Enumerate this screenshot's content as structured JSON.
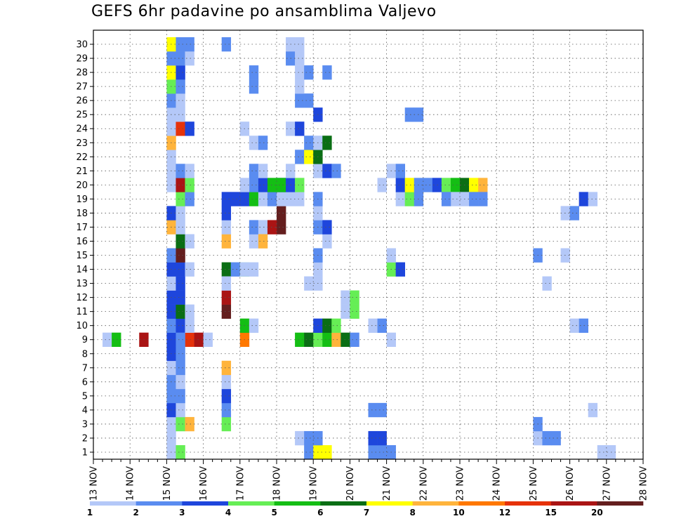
{
  "chart_data": {
    "type": "heatmap",
    "title": "GEFS 6hr padavine po ansamblima Valjevo",
    "y_categories": [
      "1",
      "2",
      "3",
      "4",
      "5",
      "6",
      "7",
      "8",
      "9",
      "10",
      "11",
      "12",
      "13",
      "14",
      "15",
      "16",
      "17",
      "18",
      "19",
      "20",
      "21",
      "22",
      "23",
      "24",
      "25",
      "26",
      "27",
      "28",
      "29",
      "30"
    ],
    "x_ticks": [
      "13 NOV",
      "14 NOV",
      "15 NOV",
      "16 NOV",
      "17 NOV",
      "18 NOV",
      "19 NOV",
      "20 NOV",
      "21 NOV",
      "22 NOV",
      "23 NOV",
      "24 NOV",
      "25 NOV",
      "26 NOV",
      "27 NOV",
      "28 NOV"
    ],
    "x_unit": "6h steps starting 13 NOV 00",
    "legend": {
      "breaks": [
        "1",
        "2",
        "3",
        "4",
        "5",
        "6",
        "7",
        "8",
        "10",
        "12",
        "15",
        "20"
      ],
      "colors": [
        "#b4c8f8",
        "#5a8cf0",
        "#1e46dc",
        "#66ee55",
        "#14be14",
        "#0a6e14",
        "#ffff00",
        "#ffb43c",
        "#ff7800",
        "#e6320a",
        "#aa1414",
        "#641e1e"
      ]
    },
    "level_color_index": {
      "note": "cells value = index into legend.colors (0..11)"
    },
    "cells": [
      [
        8,
        1,
        0
      ],
      [
        8,
        2,
        4
      ],
      [
        8,
        5,
        10
      ],
      [
        8,
        9,
        2
      ],
      [
        8,
        10,
        9
      ],
      [
        8,
        11,
        10
      ],
      [
        8,
        12,
        0
      ],
      [
        8,
        13,
        -1
      ],
      [
        0,
        8,
        0
      ],
      [
        1,
        8,
        0
      ],
      [
        2,
        8,
        0
      ],
      [
        3,
        8,
        2
      ],
      [
        4,
        8,
        1
      ],
      [
        5,
        8,
        1
      ],
      [
        6,
        8,
        0
      ],
      [
        7,
        8,
        2
      ],
      [
        8,
        8,
        2
      ],
      [
        9,
        8,
        1
      ],
      [
        10,
        8,
        2
      ],
      [
        11,
        8,
        2
      ],
      [
        12,
        8,
        0
      ],
      [
        13,
        8,
        2
      ],
      [
        14,
        8,
        1
      ],
      [
        16,
        8,
        7
      ],
      [
        17,
        8,
        2
      ],
      [
        19,
        8,
        0
      ],
      [
        20,
        8,
        0
      ],
      [
        21,
        8,
        0
      ],
      [
        22,
        8,
        7
      ],
      [
        23,
        8,
        0
      ],
      [
        24,
        8,
        0
      ],
      [
        25,
        8,
        1
      ],
      [
        26,
        8,
        3
      ],
      [
        27,
        8,
        6
      ],
      [
        28,
        8,
        1
      ],
      [
        29,
        8,
        6
      ],
      [
        2,
        9,
        3
      ],
      [
        2,
        10,
        7
      ],
      [
        9,
        9,
        2
      ],
      [
        10,
        9,
        5
      ],
      [
        11,
        9,
        2
      ],
      [
        12,
        9,
        2
      ],
      [
        13,
        9,
        2
      ],
      [
        14,
        9,
        11
      ],
      [
        15,
        9,
        5
      ],
      [
        16,
        9,
        0
      ],
      [
        17,
        9,
        0
      ],
      [
        18,
        9,
        3
      ],
      [
        19,
        9,
        10
      ],
      [
        20,
        9,
        1
      ],
      [
        23,
        9,
        9
      ],
      [
        24,
        9,
        0
      ],
      [
        25,
        9,
        0
      ],
      [
        26,
        9,
        1
      ],
      [
        27,
        9,
        2
      ],
      [
        28,
        9,
        1
      ],
      [
        29,
        9,
        1
      ],
      [
        0,
        9,
        3
      ],
      [
        3,
        9,
        0
      ],
      [
        4,
        9,
        1
      ],
      [
        5,
        9,
        0
      ],
      [
        6,
        9,
        1
      ],
      [
        7,
        9,
        1
      ],
      [
        8,
        9,
        1
      ],
      [
        9,
        10,
        0
      ],
      [
        10,
        10,
        0
      ],
      [
        13,
        10,
        0
      ],
      [
        15,
        10,
        0
      ],
      [
        18,
        10,
        1
      ],
      [
        19,
        10,
        3
      ],
      [
        20,
        10,
        0
      ],
      [
        23,
        10,
        2
      ],
      [
        28,
        10,
        0
      ],
      [
        29,
        10,
        1
      ],
      [
        15,
        17,
        0
      ],
      [
        16,
        17,
        1
      ],
      [
        16,
        18,
        0
      ],
      [
        16,
        20,
        11
      ],
      [
        17,
        20,
        11
      ],
      [
        15,
        18,
        7
      ],
      [
        16,
        19,
        10
      ],
      [
        13,
        14,
        5
      ],
      [
        13,
        15,
        1
      ],
      [
        13,
        16,
        3
      ],
      [
        2,
        14,
        3
      ],
      [
        3,
        14,
        1
      ],
      [
        4,
        14,
        2
      ],
      [
        5,
        14,
        0
      ],
      [
        6,
        14,
        7
      ],
      [
        10,
        14,
        11
      ],
      [
        11,
        14,
        10
      ],
      [
        12,
        14,
        0
      ],
      [
        15,
        14,
        7
      ],
      [
        16,
        14,
        0
      ],
      [
        17,
        14,
        2
      ],
      [
        18,
        14,
        2
      ],
      [
        18,
        15,
        2
      ],
      [
        18,
        16,
        2
      ],
      [
        18,
        17,
        4
      ],
      [
        18,
        18,
        0
      ],
      [
        18,
        19,
        1
      ],
      [
        18,
        20,
        0
      ],
      [
        19,
        17,
        1
      ],
      [
        19,
        18,
        2
      ],
      [
        19,
        19,
        4
      ],
      [
        19,
        20,
        2
      ],
      [
        20,
        17,
        1
      ],
      [
        20,
        18,
        0
      ],
      [
        22,
        17,
        0
      ],
      [
        22,
        18,
        1
      ],
      [
        26,
        17,
        1
      ],
      [
        27,
        17,
        1
      ],
      [
        29,
        14,
        1
      ],
      [
        8,
        16,
        8
      ],
      [
        9,
        16,
        4
      ],
      [
        9,
        17,
        0
      ],
      [
        13,
        16,
        0
      ],
      [
        13,
        17,
        0
      ],
      [
        19,
        16,
        0
      ],
      [
        23,
        16,
        0
      ],
      [
        0,
        23,
        1
      ],
      [
        0,
        24,
        6
      ],
      [
        0,
        25,
        6
      ],
      [
        1,
        22,
        0
      ],
      [
        1,
        23,
        1
      ],
      [
        1,
        24,
        1
      ],
      [
        8,
        22,
        4
      ],
      [
        8,
        23,
        5
      ],
      [
        8,
        24,
        3
      ],
      [
        8,
        25,
        4
      ],
      [
        8,
        26,
        7
      ],
      [
        8,
        27,
        5
      ],
      [
        8,
        28,
        1
      ],
      [
        9,
        24,
        2
      ],
      [
        9,
        25,
        5
      ],
      [
        9,
        26,
        3
      ],
      [
        8,
        32,
        0
      ],
      [
        10,
        27,
        0
      ],
      [
        10,
        28,
        3
      ],
      [
        11,
        27,
        0
      ],
      [
        11,
        28,
        3
      ],
      [
        12,
        23,
        0
      ],
      [
        12,
        24,
        0
      ],
      [
        13,
        24,
        0
      ],
      [
        14,
        24,
        1
      ],
      [
        15,
        25,
        0
      ],
      [
        16,
        24,
        1
      ],
      [
        16,
        25,
        2
      ],
      [
        17,
        24,
        0
      ],
      [
        18,
        21,
        0
      ],
      [
        18,
        22,
        0
      ],
      [
        18,
        24,
        1
      ],
      [
        19,
        20,
        4
      ],
      [
        19,
        21,
        2
      ],
      [
        19,
        22,
        3
      ],
      [
        20,
        21,
        0
      ],
      [
        20,
        24,
        0
      ],
      [
        20,
        25,
        2
      ],
      [
        20,
        26,
        1
      ],
      [
        21,
        22,
        1
      ],
      [
        21,
        23,
        6
      ],
      [
        21,
        24,
        5
      ],
      [
        22,
        23,
        1
      ],
      [
        22,
        24,
        0
      ],
      [
        22,
        25,
        5
      ],
      [
        23,
        21,
        0
      ],
      [
        23,
        22,
        2
      ],
      [
        24,
        24,
        2
      ],
      [
        25,
        22,
        1
      ],
      [
        25,
        23,
        1
      ],
      [
        26,
        22,
        0
      ],
      [
        27,
        22,
        0
      ],
      [
        27,
        23,
        1
      ],
      [
        27,
        25,
        1
      ],
      [
        28,
        21,
        1
      ],
      [
        28,
        22,
        0
      ],
      [
        29,
        21,
        0
      ],
      [
        29,
        22,
        0
      ],
      [
        0,
        30,
        1
      ],
      [
        0,
        31,
        1
      ],
      [
        1,
        30,
        2
      ],
      [
        1,
        31,
        2
      ],
      [
        3,
        30,
        1
      ],
      [
        3,
        31,
        1
      ],
      [
        9,
        30,
        0
      ],
      [
        9,
        31,
        1
      ],
      [
        0,
        32,
        1
      ],
      [
        13,
        32,
        3
      ],
      [
        13,
        33,
        2
      ],
      [
        14,
        32,
        0
      ],
      [
        18,
        33,
        0
      ],
      [
        18,
        34,
        3
      ],
      [
        18,
        35,
        1
      ],
      [
        19,
        31,
        0
      ],
      [
        19,
        33,
        2
      ],
      [
        19,
        34,
        6
      ],
      [
        19,
        35,
        1
      ],
      [
        20,
        32,
        0
      ],
      [
        20,
        33,
        1
      ],
      [
        19,
        36,
        1
      ],
      [
        19,
        37,
        2
      ],
      [
        19,
        38,
        3
      ],
      [
        19,
        39,
        4
      ],
      [
        19,
        40,
        5
      ],
      [
        19,
        41,
        6
      ],
      [
        19,
        42,
        7
      ],
      [
        18,
        39,
        0
      ],
      [
        18,
        40,
        0
      ],
      [
        18,
        41,
        1
      ],
      [
        18,
        42,
        1
      ],
      [
        18,
        38,
        1
      ],
      [
        24,
        34,
        1
      ],
      [
        24,
        35,
        1
      ],
      [
        1,
        48,
        0
      ],
      [
        1,
        49,
        1
      ],
      [
        1,
        50,
        1
      ],
      [
        2,
        48,
        1
      ],
      [
        9,
        52,
        0
      ],
      [
        9,
        53,
        1
      ],
      [
        12,
        49,
        0
      ],
      [
        14,
        48,
        1
      ],
      [
        0,
        55,
        0
      ],
      [
        0,
        56,
        0
      ],
      [
        3,
        54,
        0
      ],
      [
        14,
        51,
        0
      ],
      [
        17,
        51,
        0
      ],
      [
        17,
        52,
        1
      ],
      [
        18,
        53,
        2
      ],
      [
        18,
        54,
        0
      ]
    ]
  }
}
